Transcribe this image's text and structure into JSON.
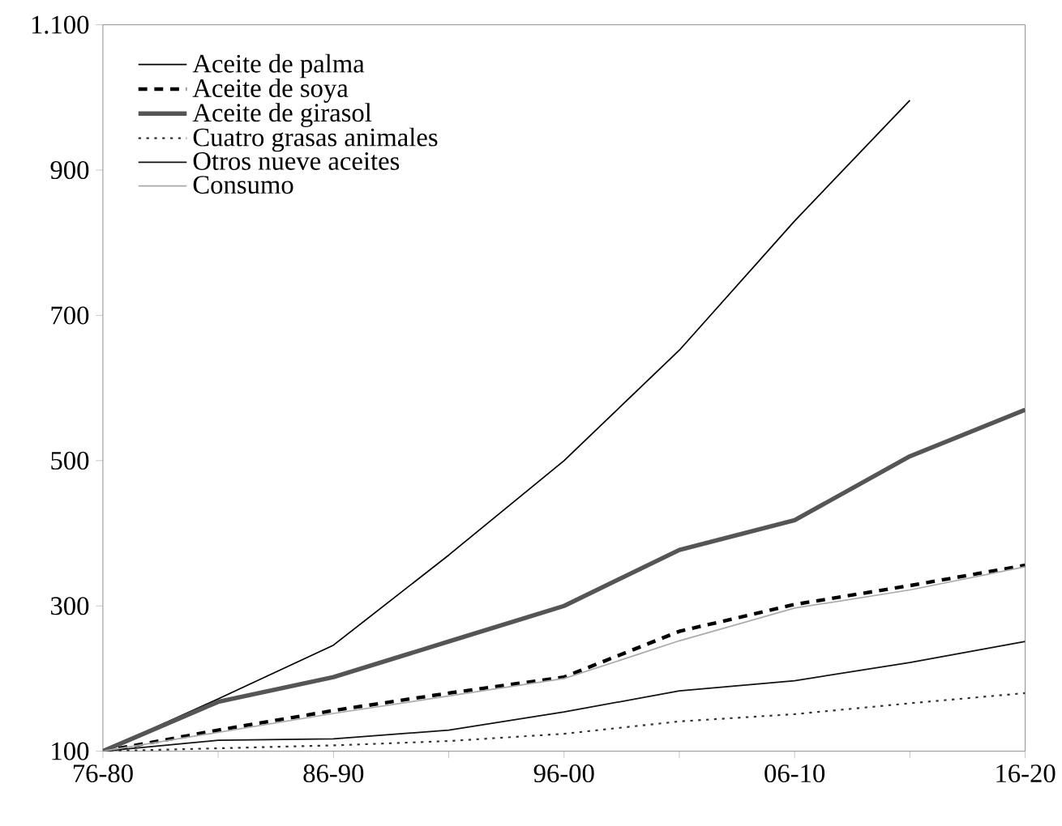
{
  "chart_data": {
    "type": "line",
    "categories": [
      "76-80",
      null,
      "86-90",
      null,
      "96-00",
      null,
      "06-10",
      null,
      "16-20"
    ],
    "ylim": [
      100,
      1100
    ],
    "yticks": [
      100,
      300,
      500,
      700,
      900,
      {
        "value": 1100,
        "label": "1.100"
      }
    ],
    "grid": false,
    "legend": "top left",
    "marker": "none",
    "series": [
      {
        "name": "Aceite de palma",
        "color": "#000000",
        "line_style": "solid",
        "values": [
          100,
          172,
          246,
          370,
          500,
          652,
          830,
          996,
          null
        ]
      },
      {
        "name": "Aceite de soya",
        "color": "#000000",
        "line_style": "dashed",
        "values": [
          100,
          129,
          156,
          180,
          202,
          265,
          302,
          328,
          356
        ]
      },
      {
        "name": "Aceite de girasol",
        "color": "#555555",
        "line_style": "solid",
        "values": [
          100,
          168,
          202,
          251,
          300,
          377,
          418,
          506,
          570
        ]
      },
      {
        "name": "Cuatro grasas animales",
        "color": "#333333",
        "line_style": "dotted",
        "values": [
          100,
          104,
          108,
          114,
          124,
          141,
          151,
          166,
          180
        ]
      },
      {
        "name": "Otros nueve aceites",
        "color": "#111111",
        "line_style": "solid",
        "values": [
          100,
          115,
          117,
          129,
          154,
          183,
          197,
          222,
          251
        ]
      },
      {
        "name": "Consumo",
        "color": "#aaaaaa",
        "line_style": "solid",
        "values": [
          100,
          126,
          152,
          176,
          200,
          252,
          297,
          322,
          354
        ]
      }
    ]
  }
}
